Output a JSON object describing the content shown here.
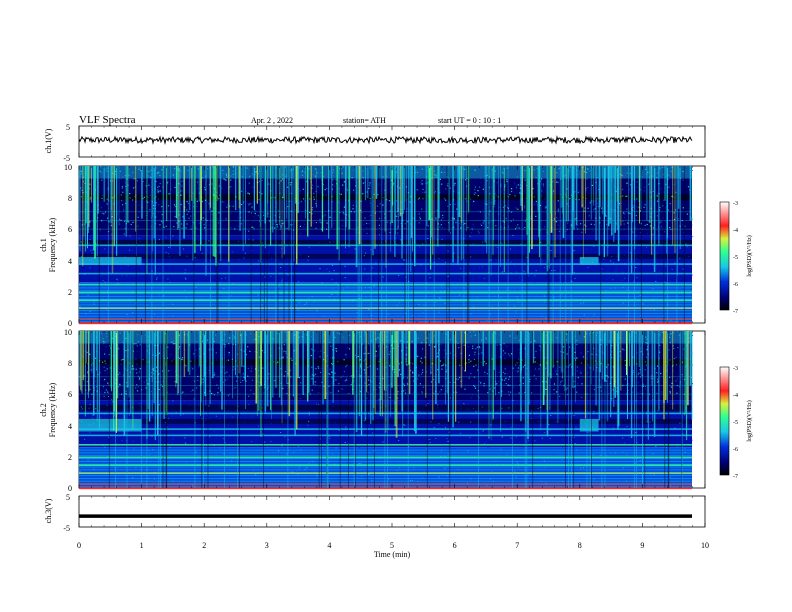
{
  "header": {
    "title": "VLF  Spectra",
    "date": "Apr. 2  , 2022",
    "station": "station= ATH",
    "start": "start  UT  =    0  : 10 : 1"
  },
  "colors": {
    "spectrogram_dark": "#00007a",
    "spectrogram_blue": "#0030d8",
    "spectrogram_cyan": "#19c8e6",
    "spectrogram_green": "#30ff90",
    "spectrogram_yellow": "#d8f040",
    "spectrogram_red": "#ff2020"
  },
  "chart_data": [
    {
      "type": "line",
      "name": "ch1-waveform",
      "ylabel": "ch.1(V)",
      "ylim": [
        -5,
        5
      ],
      "yticks": [
        "5",
        "-5"
      ],
      "x_range_min": [
        0,
        9.8
      ],
      "approx_mean_V": 0.5,
      "approx_amplitude_V": 1.0
    },
    {
      "type": "heatmap",
      "name": "ch1-spectrogram",
      "ylabel": "ch.1\nFrequency (kHz)",
      "ylim": [
        0,
        10
      ],
      "yticks": [
        "0",
        "2",
        "4",
        "6",
        "8",
        "10"
      ],
      "x_range_min": [
        0,
        9.8
      ],
      "colorbar": {
        "label": "log(PSD)(V²/Hz)",
        "range": [
          -7,
          -3
        ],
        "ticks": [
          "-3",
          "-4",
          "-5",
          "-6",
          "-7"
        ]
      },
      "features": {
        "strong_bands_kHz": [
          0.3,
          1.0,
          1.5,
          2.0,
          2.5,
          3.2,
          3.8,
          5.0
        ],
        "bursts": [
          {
            "t_min": [
              0,
              1
            ],
            "f_kHz": [
              3.7,
              4.2
            ]
          },
          {
            "t_min": [
              8,
              8.3
            ],
            "f_kHz": [
              3.7,
              4.2
            ]
          }
        ]
      }
    },
    {
      "type": "heatmap",
      "name": "ch2-spectrogram",
      "ylabel": "ch.2\nFrequency (kHz)",
      "ylim": [
        0,
        10
      ],
      "yticks": [
        "0",
        "2",
        "4",
        "6",
        "8",
        "10"
      ],
      "x_range_min": [
        0,
        9.8
      ],
      "colorbar": {
        "label": "log(PSD)(V²/Hz)",
        "range": [
          -7,
          -3
        ],
        "ticks": [
          "-3",
          "-4",
          "-5",
          "-6",
          "-7"
        ]
      },
      "features": {
        "strong_bands_kHz": [
          0.3,
          1.0,
          1.5,
          2.0,
          2.8,
          3.4,
          3.8,
          4.8
        ],
        "bursts": [
          {
            "t_min": [
              0,
              1
            ],
            "f_kHz": [
              3.6,
              4.4
            ]
          },
          {
            "t_min": [
              8,
              8.3
            ],
            "f_kHz": [
              3.6,
              4.4
            ]
          }
        ]
      }
    },
    {
      "type": "line",
      "name": "ch3-waveform",
      "ylabel": "ch.3(V)",
      "ylim": [
        -5,
        5
      ],
      "yticks": [
        "5",
        "-5"
      ],
      "x_range_min": [
        0,
        9.8
      ],
      "approx_mean_V": -1.5
    }
  ],
  "xaxis": {
    "label": "Time (min)",
    "range": [
      0,
      10
    ],
    "ticks": [
      "0",
      "1",
      "2",
      "3",
      "4",
      "5",
      "6",
      "7",
      "8",
      "9",
      "10"
    ]
  }
}
